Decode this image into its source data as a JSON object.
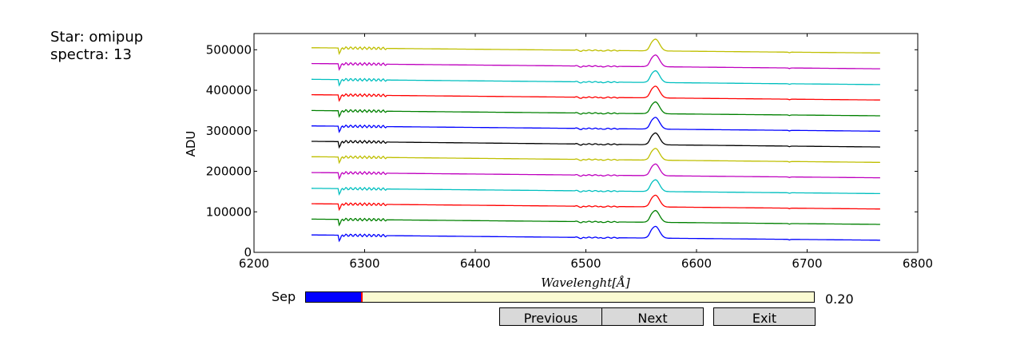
{
  "info": {
    "star": "Star: omipup",
    "spectra": "spectra: 13"
  },
  "chart_data": {
    "type": "line",
    "xlabel": "Wavelenght[Å]",
    "ylabel": "ADU",
    "xlim": [
      6200,
      6800
    ],
    "ylim": [
      0,
      540000
    ],
    "xticks": [
      "6200",
      "6300",
      "6400",
      "6500",
      "6600",
      "6700",
      "6800"
    ],
    "yticks": [
      "0",
      "100000",
      "200000",
      "300000",
      "400000",
      "500000"
    ],
    "x_range": [
      6252,
      6766
    ],
    "line_features_angstrom": {
      "absorption": 6277,
      "emission_peak": 6563
    },
    "series": [
      {
        "color": "#0000ff",
        "start": 43000,
        "end": 30000
      },
      {
        "color": "#008000",
        "start": 82000,
        "end": 69000
      },
      {
        "color": "#ff0000",
        "start": 120000,
        "end": 107000
      },
      {
        "color": "#00bfbf",
        "start": 158000,
        "end": 145000
      },
      {
        "color": "#bf00bf",
        "start": 197000,
        "end": 184000
      },
      {
        "color": "#bfbf00",
        "start": 236000,
        "end": 222000
      },
      {
        "color": "#000000",
        "start": 274000,
        "end": 260000
      },
      {
        "color": "#0000ff",
        "start": 312000,
        "end": 299000
      },
      {
        "color": "#008000",
        "start": 350000,
        "end": 337000
      },
      {
        "color": "#ff0000",
        "start": 389000,
        "end": 376000
      },
      {
        "color": "#00bfbf",
        "start": 427000,
        "end": 414000
      },
      {
        "color": "#bf00bf",
        "start": 466000,
        "end": 453000
      },
      {
        "color": "#bfbf00",
        "start": 505000,
        "end": 492000
      }
    ]
  },
  "controls": {
    "sep_label": "Sep",
    "sep_value_text": "0.20",
    "sep_fraction": 0.11,
    "previous_label": "Previous",
    "next_label": "Next",
    "exit_label": "Exit"
  }
}
